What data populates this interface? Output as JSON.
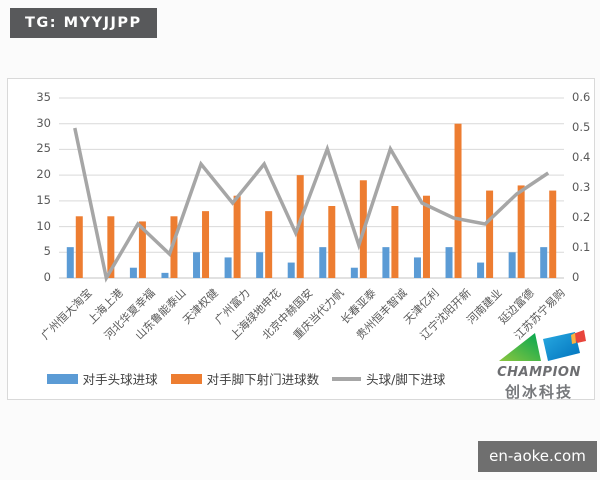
{
  "page": {
    "badge_top_left": "TG: MYYJJPP",
    "watermark": "en-aoke.com"
  },
  "logo": {
    "brand": "CHAMPION",
    "brand_cn": "创冰科技"
  },
  "chart_data": {
    "type": "bar",
    "subtype": "bar+line-combo",
    "title": "",
    "xlabel": "",
    "ylabel": "",
    "grid": true,
    "legend_position": "bottom",
    "categories": [
      "广州恒大淘宝",
      "上海上港",
      "河北华夏幸福",
      "山东鲁能泰山",
      "天津权健",
      "广州富力",
      "上海绿地申花",
      "北京中赫国安",
      "重庆当代力帆",
      "长春亚泰",
      "贵州恒丰智诚",
      "天津亿利",
      "辽宁沈阳开新",
      "河南建业",
      "延边富德",
      "江苏苏宁易购"
    ],
    "series": [
      {
        "name": "对手头球进球",
        "type": "bar",
        "axis": "left",
        "color": "#5B9BD5",
        "values": [
          6,
          0,
          2,
          1,
          5,
          4,
          5,
          3,
          6,
          2,
          6,
          4,
          6,
          3,
          5,
          6
        ]
      },
      {
        "name": "对手脚下射门进球数",
        "type": "bar",
        "axis": "left",
        "color": "#ED7D31",
        "values": [
          12,
          12,
          11,
          12,
          13,
          16,
          13,
          20,
          14,
          19,
          14,
          16,
          30,
          17,
          18,
          17
        ]
      },
      {
        "name": "头球/脚下进球",
        "type": "line",
        "axis": "right",
        "color": "#A6A6A6",
        "values": [
          0.5,
          0,
          0.18,
          0.08,
          0.38,
          0.25,
          0.38,
          0.15,
          0.43,
          0.11,
          0.43,
          0.25,
          0.2,
          0.18,
          0.28,
          0.35
        ]
      }
    ],
    "left_axis": {
      "min": 0,
      "max": 35,
      "ticks": [
        0,
        5,
        10,
        15,
        20,
        25,
        30,
        35
      ]
    },
    "right_axis": {
      "min": 0,
      "max": 0.6,
      "ticks": [
        0,
        0.1,
        0.2,
        0.3,
        0.4,
        0.5,
        0.6
      ]
    },
    "colors": {
      "gridline": "#d9d9d9",
      "axis_text": "#595959"
    }
  }
}
